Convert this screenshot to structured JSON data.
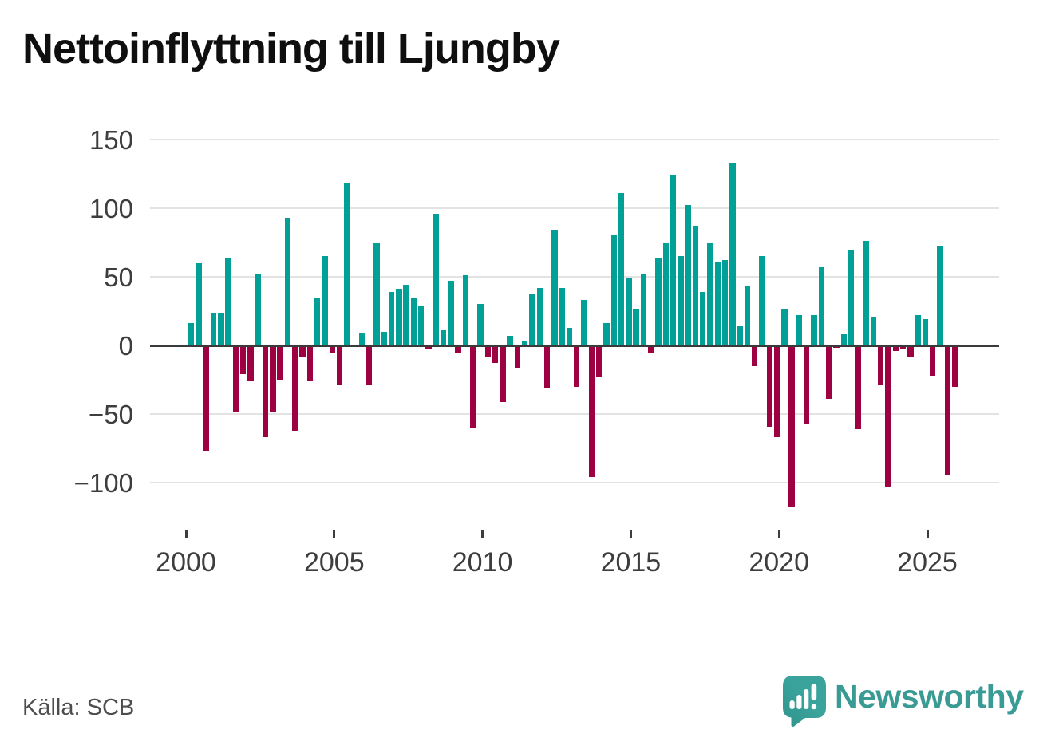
{
  "title": "Nettoinflyttning till Ljungby",
  "source": "Källa: SCB",
  "brand": {
    "name": "Newsworthy",
    "logo_icon": "speech-bubble-bar-chart-icon"
  },
  "colors": {
    "positive": "#00A096",
    "negative": "#9E0141",
    "grid": "#E3E3E3",
    "zero_line": "#3A3A3A",
    "tick_label": "#3D3D3D",
    "title": "#0F0F0F",
    "source_text": "#4D4D4D",
    "brand_teal": "#3AA39B",
    "brand_text": "#399B94"
  },
  "chart_data": {
    "type": "bar",
    "title": "Nettoinflyttning till Ljungby",
    "x_unit": "quarter",
    "frequency": "quarterly",
    "start_year": 2000,
    "end_year": 2025,
    "values": [
      16,
      60,
      -77,
      24,
      23,
      63,
      -48,
      -21,
      -26,
      52,
      -67,
      -48,
      -25,
      93,
      -62,
      -8,
      -26,
      35,
      65,
      -5,
      -29,
      118,
      0,
      9,
      -29,
      74,
      10,
      39,
      41,
      44,
      35,
      29,
      -3,
      96,
      11,
      47,
      -6,
      51,
      -60,
      30,
      -8,
      -13,
      -41,
      7,
      -16,
      3,
      37,
      42,
      -31,
      84,
      42,
      13,
      -30,
      33,
      -96,
      -23,
      16,
      80,
      111,
      49,
      26,
      52,
      -5,
      64,
      74,
      124,
      65,
      102,
      87,
      39,
      74,
      61,
      62,
      133,
      14,
      43,
      -15,
      65,
      -59,
      -67,
      26,
      -117,
      22,
      -57,
      22,
      57,
      -39,
      -2,
      8,
      69,
      -61,
      76,
      21,
      -29,
      -103,
      -4,
      -3,
      -8,
      22,
      19,
      -22,
      72,
      -94,
      -30
    ],
    "x_ticks": [
      "2000",
      "2005",
      "2010",
      "2015",
      "2020",
      "2025"
    ],
    "y_ticks": [
      150,
      100,
      50,
      0,
      -50,
      -100
    ],
    "ylim": [
      -130,
      152
    ],
    "grid": "horizontal",
    "legend": "none",
    "bar_colors": {
      "positive": "#00A096",
      "negative": "#9E0141"
    }
  }
}
